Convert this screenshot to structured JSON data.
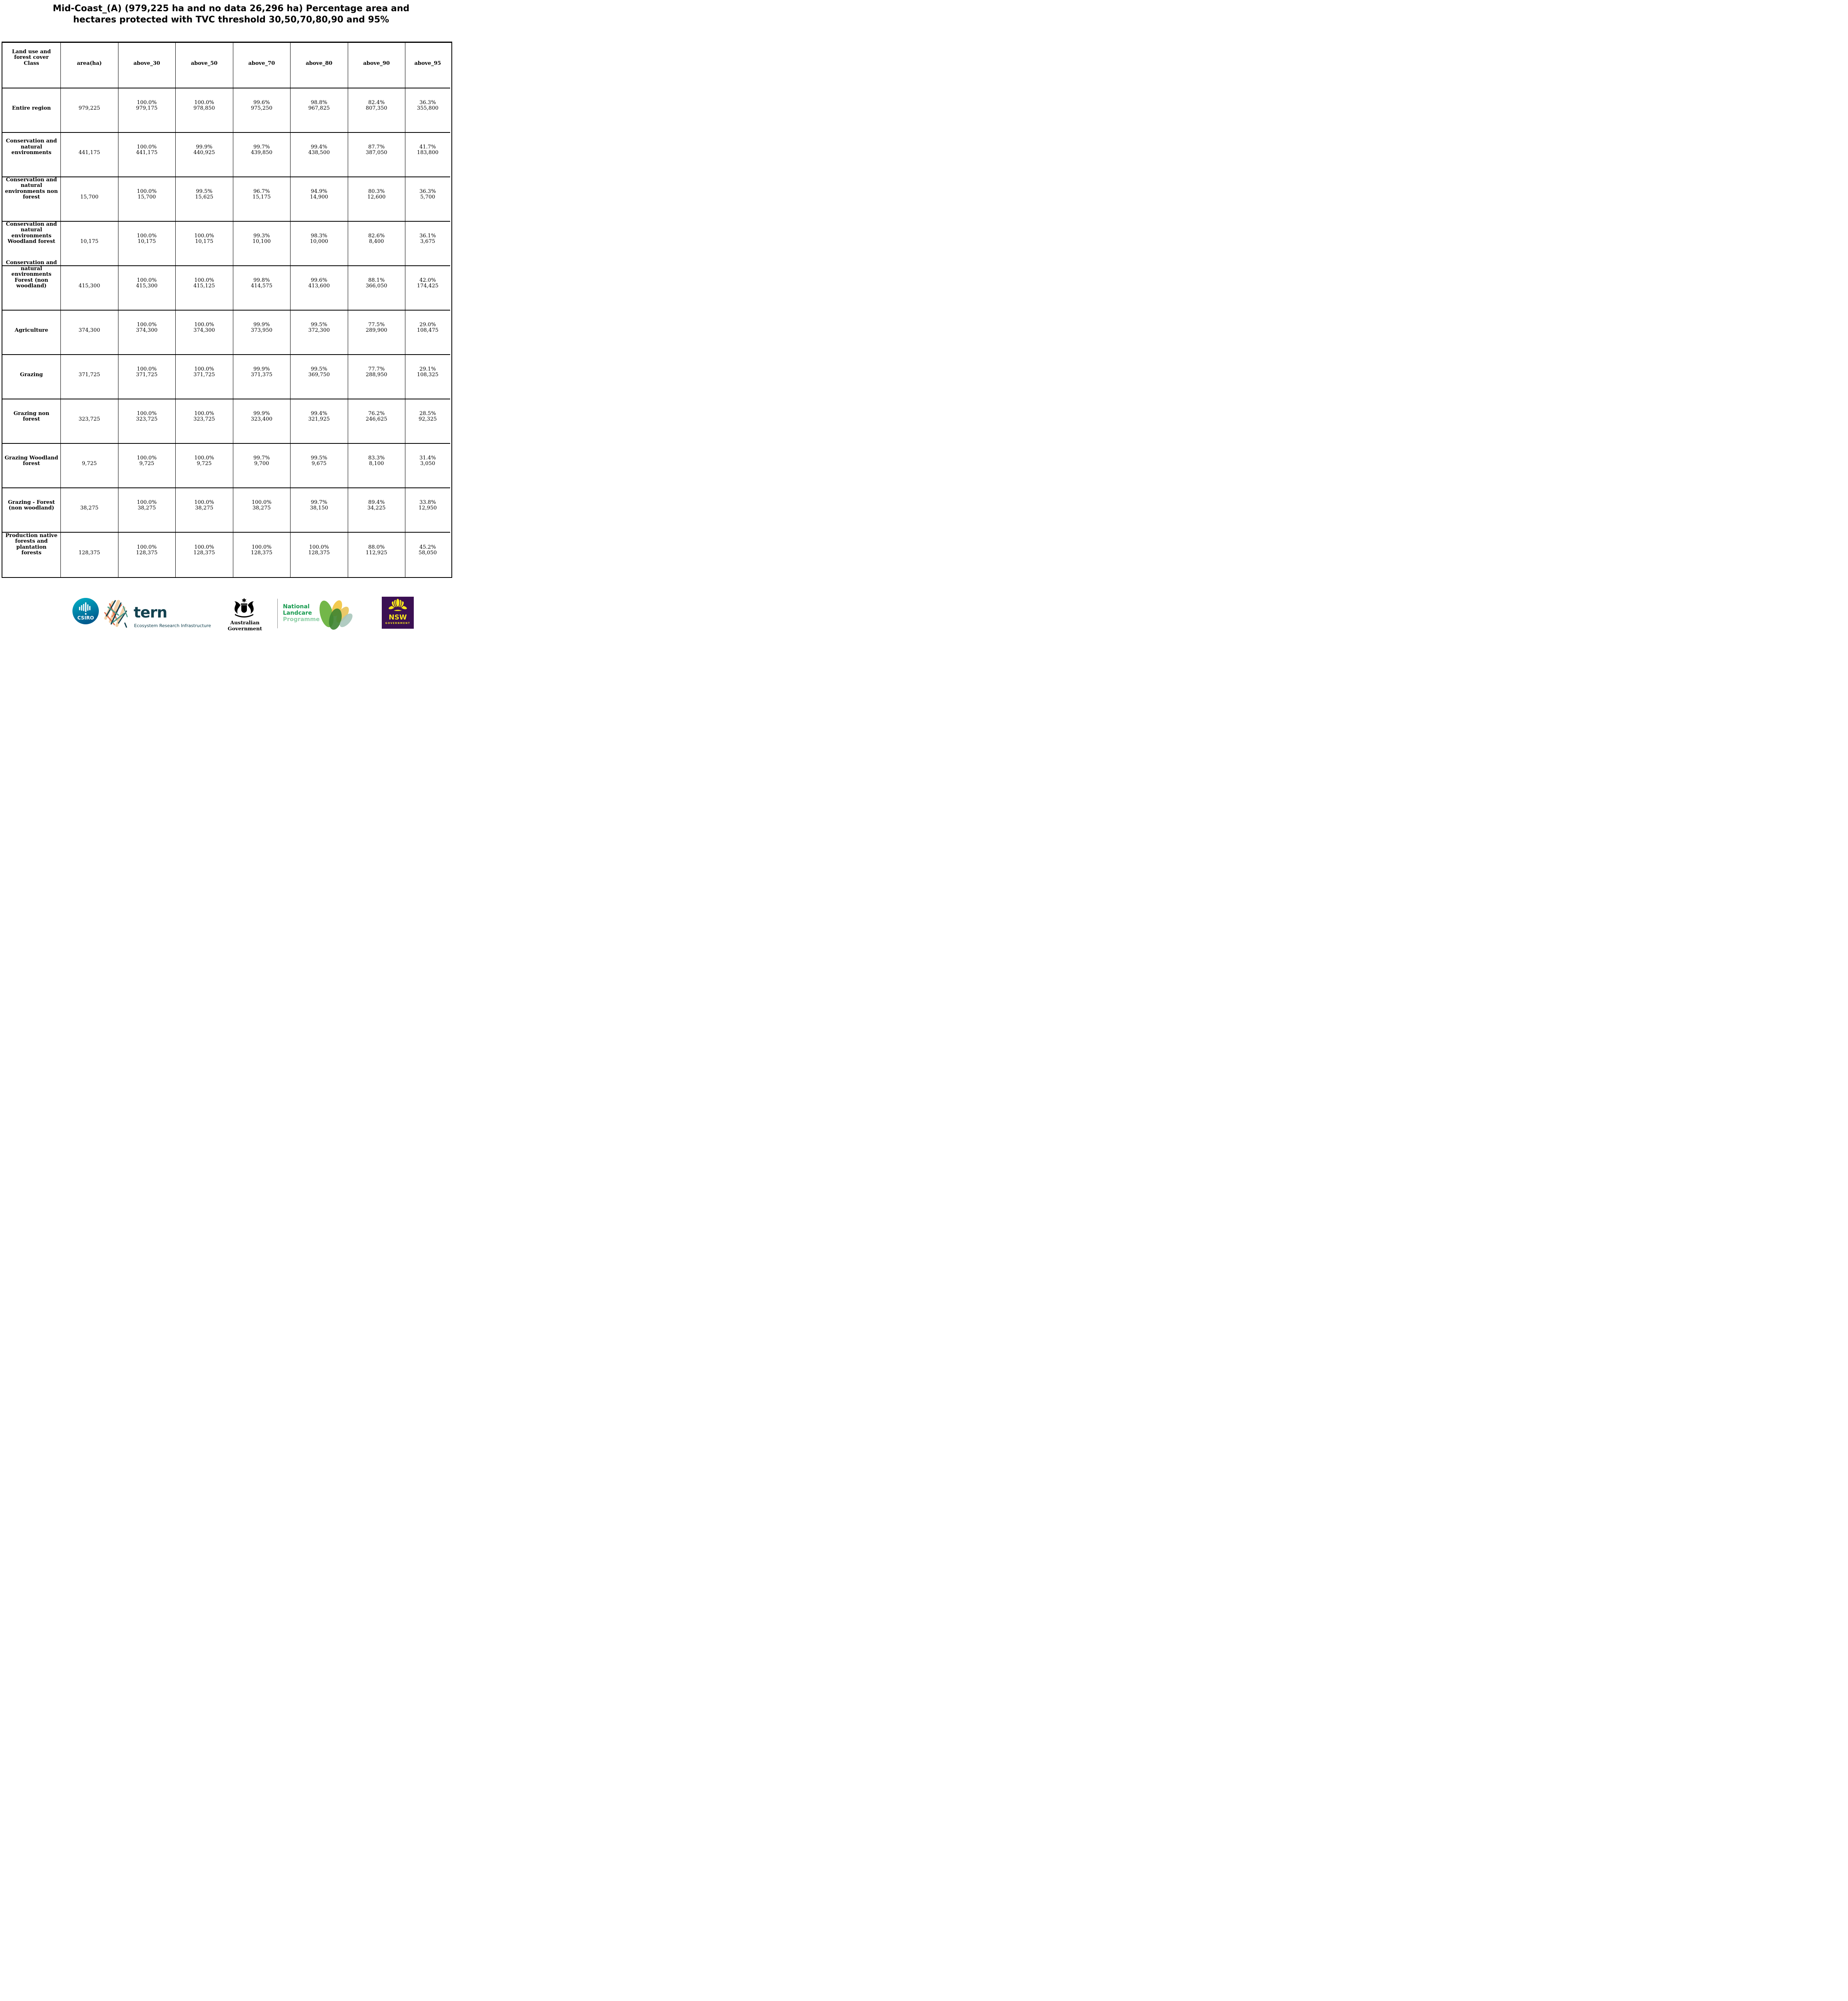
{
  "title": "Mid-Coast_(A) (979,225 ha and no data 26,296 ha) Percentage area and\nhectares protected with TVC threshold 30,50,70,80,90 and 95%",
  "table": {
    "columns": [
      "Land use and\nforest cover\nClass",
      "area(ha)",
      "above_30",
      "above_50",
      "above_70",
      "above_80",
      "above_90",
      "above_95"
    ],
    "rows": [
      {
        "label": "Entire region",
        "area": "979,225",
        "vals": [
          [
            "100.0%",
            "979,175"
          ],
          [
            "100.0%",
            "978,850"
          ],
          [
            "99.6%",
            "975,250"
          ],
          [
            "98.8%",
            "967,825"
          ],
          [
            "82.4%",
            "807,350"
          ],
          [
            "36.3%",
            "355,800"
          ]
        ]
      },
      {
        "label": "Conservation and\nnatural\nenvironments",
        "area": "441,175",
        "vals": [
          [
            "100.0%",
            "441,175"
          ],
          [
            "99.9%",
            "440,925"
          ],
          [
            "99.7%",
            "439,850"
          ],
          [
            "99.4%",
            "438,500"
          ],
          [
            "87.7%",
            "387,050"
          ],
          [
            "41.7%",
            "183,800"
          ]
        ]
      },
      {
        "label": "Conservation and\nnatural\nenvironments non\nforest",
        "area": "15,700",
        "vals": [
          [
            "100.0%",
            "15,700"
          ],
          [
            "99.5%",
            "15,625"
          ],
          [
            "96.7%",
            "15,175"
          ],
          [
            "94.9%",
            "14,900"
          ],
          [
            "80.3%",
            "12,600"
          ],
          [
            "36.3%",
            "5,700"
          ]
        ]
      },
      {
        "label": "Conservation and\nnatural\nenvironments\nWoodland forest",
        "area": "10,175",
        "vals": [
          [
            "100.0%",
            "10,175"
          ],
          [
            "100.0%",
            "10,175"
          ],
          [
            "99.3%",
            "10,100"
          ],
          [
            "98.3%",
            "10,000"
          ],
          [
            "82.6%",
            "8,400"
          ],
          [
            "36.1%",
            "3,675"
          ]
        ]
      },
      {
        "label": "Conservation and\nnatural\nenvironments\nForest (non\nwoodland)",
        "area": "415,300",
        "vals": [
          [
            "100.0%",
            "415,300"
          ],
          [
            "100.0%",
            "415,125"
          ],
          [
            "99.8%",
            "414,575"
          ],
          [
            "99.6%",
            "413,600"
          ],
          [
            "88.1%",
            "366,050"
          ],
          [
            "42.0%",
            "174,425"
          ]
        ]
      },
      {
        "label": "Agriculture",
        "area": "374,300",
        "vals": [
          [
            "100.0%",
            "374,300"
          ],
          [
            "100.0%",
            "374,300"
          ],
          [
            "99.9%",
            "373,950"
          ],
          [
            "99.5%",
            "372,300"
          ],
          [
            "77.5%",
            "289,900"
          ],
          [
            "29.0%",
            "108,475"
          ]
        ]
      },
      {
        "label": "Grazing",
        "area": "371,725",
        "vals": [
          [
            "100.0%",
            "371,725"
          ],
          [
            "100.0%",
            "371,725"
          ],
          [
            "99.9%",
            "371,375"
          ],
          [
            "99.5%",
            "369,750"
          ],
          [
            "77.7%",
            "288,950"
          ],
          [
            "29.1%",
            "108,325"
          ]
        ]
      },
      {
        "label": "Grazing non\nforest",
        "area": "323,725",
        "vals": [
          [
            "100.0%",
            "323,725"
          ],
          [
            "100.0%",
            "323,725"
          ],
          [
            "99.9%",
            "323,400"
          ],
          [
            "99.4%",
            "321,925"
          ],
          [
            "76.2%",
            "246,625"
          ],
          [
            "28.5%",
            "92,325"
          ]
        ]
      },
      {
        "label": "Grazing Woodland\nforest",
        "area": "9,725",
        "vals": [
          [
            "100.0%",
            "9,725"
          ],
          [
            "100.0%",
            "9,725"
          ],
          [
            "99.7%",
            "9,700"
          ],
          [
            "99.5%",
            "9,675"
          ],
          [
            "83.3%",
            "8,100"
          ],
          [
            "31.4%",
            "3,050"
          ]
        ]
      },
      {
        "label": "Grazing - Forest\n(non woodland)",
        "area": "38,275",
        "vals": [
          [
            "100.0%",
            "38,275"
          ],
          [
            "100.0%",
            "38,275"
          ],
          [
            "100.0%",
            "38,275"
          ],
          [
            "99.7%",
            "38,150"
          ],
          [
            "89.4%",
            "34,225"
          ],
          [
            "33.8%",
            "12,950"
          ]
        ]
      },
      {
        "label": "Production native\nforests and\nplantation\nforests",
        "area": "128,375",
        "vals": [
          [
            "100.0%",
            "128,375"
          ],
          [
            "100.0%",
            "128,375"
          ],
          [
            "100.0%",
            "128,375"
          ],
          [
            "100.0%",
            "128,375"
          ],
          [
            "88.0%",
            "112,925"
          ],
          [
            "45.2%",
            "58,050"
          ]
        ]
      }
    ]
  },
  "footer": {
    "csiro_label": "CSIRO",
    "tern_label": "tern",
    "tern_sub": "Ecosystem Research Infrastructure",
    "aus_gov_label": "Australian Government",
    "landcare_line1": "National",
    "landcare_line2": "Landcare",
    "landcare_line3": "Programme",
    "nsw_label": "NSW",
    "nsw_sub": "GOVERNMENT",
    "colors": {
      "csiro_teal_top": "#00b2c7",
      "csiro_blue_bottom": "#005b8e",
      "tern_dark": "#12414f",
      "tern_orange": "#e4714d",
      "tern_teal": "#4f9d8d",
      "tern_peach": "#f3cfa6",
      "landcare_green": "#169a4e",
      "landcare_light_green": "#8ecfa6",
      "leaf_green": "#6cb33f",
      "leaf_dark_green": "#3e8431",
      "leaf_yellow": "#f2c43d",
      "leaf_grey": "#a8c6bb",
      "nsw_purple": "#3b1053",
      "nsw_yellow": "#f8e71c"
    }
  }
}
